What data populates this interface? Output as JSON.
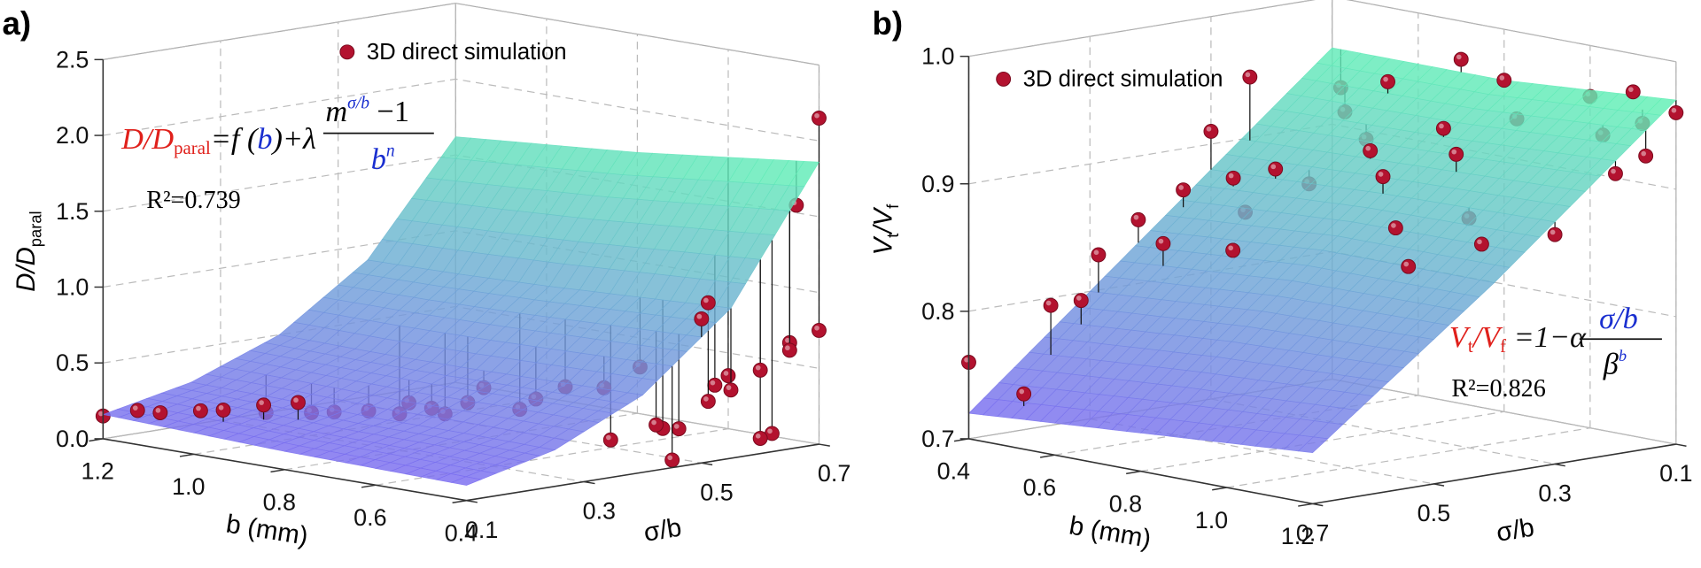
{
  "chart_data": [
    {
      "type": "surface3d",
      "panel_label": "a)",
      "x_label": "b (mm)",
      "y_label": "σ/b",
      "z_label": {
        "text": "D/D",
        "sub": "paral"
      },
      "xlim": [
        1.2,
        0.4
      ],
      "xticks": [
        1.2,
        {
          "value": 1,
          "label": "1.0"
        },
        0.8,
        0.6,
        0.4
      ],
      "ylim": [
        0.1,
        0.7
      ],
      "yticks": [
        0.1,
        0.3,
        0.5,
        0.7
      ],
      "zlim": [
        0,
        2.5
      ],
      "zticks": [
        {
          "value": 0,
          "label": "0.0"
        },
        0.5,
        {
          "value": 1,
          "label": "1.0"
        },
        1.5,
        {
          "value": 2,
          "label": "2.0"
        },
        2.5
      ],
      "grid": true,
      "legend": "upper center",
      "equation": {
        "lhs": "D/D",
        "lhs_sub": "paral",
        "rhs_start": "=f (",
        "rhs_var": "b",
        "rhs_end": ")+λ",
        "numerator": "m",
        "numerator_sup": "σ/b",
        "numerator_end": " −1",
        "denominator": "b",
        "denominator_sup": "n"
      },
      "r2": "R²=0.739",
      "surface": {
        "b": [
          0.4,
          0.6,
          0.8,
          1.0,
          1.2
        ],
        "sigma_b": [
          0.1,
          0.25,
          0.4,
          0.55,
          0.7
        ],
        "values": [
          [
            0.1,
            0.24,
            0.51,
            0.99,
            1.86
          ],
          [
            0.11,
            0.25,
            0.5,
            0.96,
            1.79
          ],
          [
            0.12,
            0.25,
            0.49,
            0.93,
            1.72
          ],
          [
            0.14,
            0.27,
            0.49,
            0.91,
            1.67
          ],
          [
            0.16,
            0.28,
            0.5,
            0.9,
            1.62
          ]
        ],
        "colors": [
          "#7a6cf0",
          "#5ff2b4"
        ]
      },
      "series": [
        {
          "name": "3D direct simulation",
          "color": "#b3122f",
          "b": [
            1.2,
            1.15,
            1.1,
            1.05,
            1.0,
            0.95,
            0.9,
            1.1,
            1.0,
            0.95,
            0.9,
            0.85,
            0.8,
            0.75,
            1.0,
            0.9,
            0.85,
            0.8,
            0.7,
            0.7,
            0.6,
            0.55,
            0.6,
            0.55,
            0.5,
            0.45,
            0.45,
            0.4,
            0.4,
            0.5,
            0.4,
            0.45,
            0.4,
            0.4,
            0.4,
            0.4,
            0.4,
            0.45,
            0.4,
            0.6,
            0.4
          ],
          "sigma_b": [
            0.1,
            0.12,
            0.12,
            0.15,
            0.15,
            0.18,
            0.2,
            0.3,
            0.3,
            0.3,
            0.32,
            0.35,
            0.35,
            0.4,
            0.45,
            0.45,
            0.45,
            0.5,
            0.45,
            0.5,
            0.5,
            0.45,
            0.55,
            0.55,
            0.5,
            0.5,
            0.55,
            0.45,
            0.55,
            0.6,
            0.5,
            0.55,
            0.6,
            0.62,
            0.6,
            0.65,
            0.65,
            0.7,
            0.7,
            0.7,
            0.7
          ],
          "values": [
            0.15,
            0.2,
            0.21,
            0.23,
            0.26,
            0.3,
            0.33,
            0.1,
            0.15,
            0.18,
            0.2,
            0.26,
            0.25,
            0.38,
            0.05,
            0.1,
            0.2,
            0.15,
            0.3,
            0.35,
            0.05,
            0.45,
            0.5,
            0.12,
            0.2,
            0.2,
            0.35,
            0.05,
            0.45,
            0.4,
            0.95,
            1.0,
            0.1,
            0.12,
            0.55,
            0.7,
            0.65,
            1.55,
            0.75,
            0.35,
            2.15
          ]
        }
      ]
    },
    {
      "type": "surface3d",
      "panel_label": "b)",
      "x_label": "b (mm)",
      "y_label": "σ/b",
      "z_label": {
        "text": "V",
        "sub": "t",
        "mid": "/V",
        "sub2": "f"
      },
      "xlim": [
        0.4,
        1.2
      ],
      "xticks": [
        0.4,
        0.6,
        0.8,
        {
          "value": 1,
          "label": "1.0"
        },
        1.2
      ],
      "ylim": [
        0.7,
        0.1
      ],
      "yticks": [
        0.7,
        0.5,
        0.3,
        0.1
      ],
      "zlim": [
        0.7,
        1.0
      ],
      "zticks": [
        0.7,
        0.8,
        0.9,
        {
          "value": 1,
          "label": "1.0"
        }
      ],
      "grid": true,
      "legend": "upper left",
      "equation": {
        "lhs": "V",
        "lhs_sub": "t",
        "lhs_mid": "/V",
        "lhs_sub2": "f",
        "rhs": " =1−α",
        "numerator": "σ/b",
        "denominator": "β",
        "denominator_sup": "b"
      },
      "r2": "R²=0.826",
      "surface": {
        "b": [
          0.4,
          0.8,
          1.2
        ],
        "sigma_b": [
          0.1,
          0.4,
          0.7
        ],
        "values": [
          [
            0.96,
            0.84,
            0.72
          ],
          [
            0.96,
            0.85,
            0.73
          ],
          [
            0.97,
            0.85,
            0.74
          ]
        ],
        "colors": [
          "#7a6cf0",
          "#5ff2b4"
        ]
      },
      "series": [
        {
          "name": "3D direct simulation",
          "color": "#b3122f",
          "b": [
            0.4,
            0.5,
            0.45,
            0.45,
            0.42,
            0.4,
            0.5,
            0.42,
            0.4,
            0.48,
            0.42,
            0.55,
            0.62,
            0.55,
            0.6,
            0.62,
            0.5,
            0.42,
            0.7,
            0.8,
            0.9,
            1.0,
            0.8,
            0.9,
            0.7,
            0.8,
            1.0,
            1.1,
            1.2,
            1.2,
            1.1,
            1.0,
            1.2,
            1.2,
            1.15,
            1.1,
            0.9,
            0.6
          ],
          "sigma_b": [
            0.7,
            0.68,
            0.6,
            0.55,
            0.5,
            0.42,
            0.45,
            0.36,
            0.3,
            0.32,
            0.25,
            0.35,
            0.42,
            0.3,
            0.28,
            0.2,
            0.15,
            0.1,
            0.25,
            0.3,
            0.35,
            0.4,
            0.2,
            0.25,
            0.1,
            0.1,
            0.3,
            0.35,
            0.3,
            0.2,
            0.15,
            0.1,
            0.1,
            0.15,
            0.12,
            0.1,
            0.15,
            0.15
          ],
          "values": [
            0.76,
            0.74,
            0.8,
            0.8,
            0.83,
            0.85,
            0.84,
            0.87,
            0.91,
            0.88,
            0.95,
            0.86,
            0.84,
            0.89,
            0.88,
            0.91,
            0.92,
            0.93,
            0.91,
            0.9,
            0.87,
            0.85,
            0.93,
            0.92,
            0.97,
            0.96,
            0.88,
            0.87,
            0.88,
            0.92,
            0.94,
            0.96,
            0.96,
            0.93,
            0.95,
            0.97,
            0.94,
            0.95
          ]
        }
      ]
    }
  ]
}
